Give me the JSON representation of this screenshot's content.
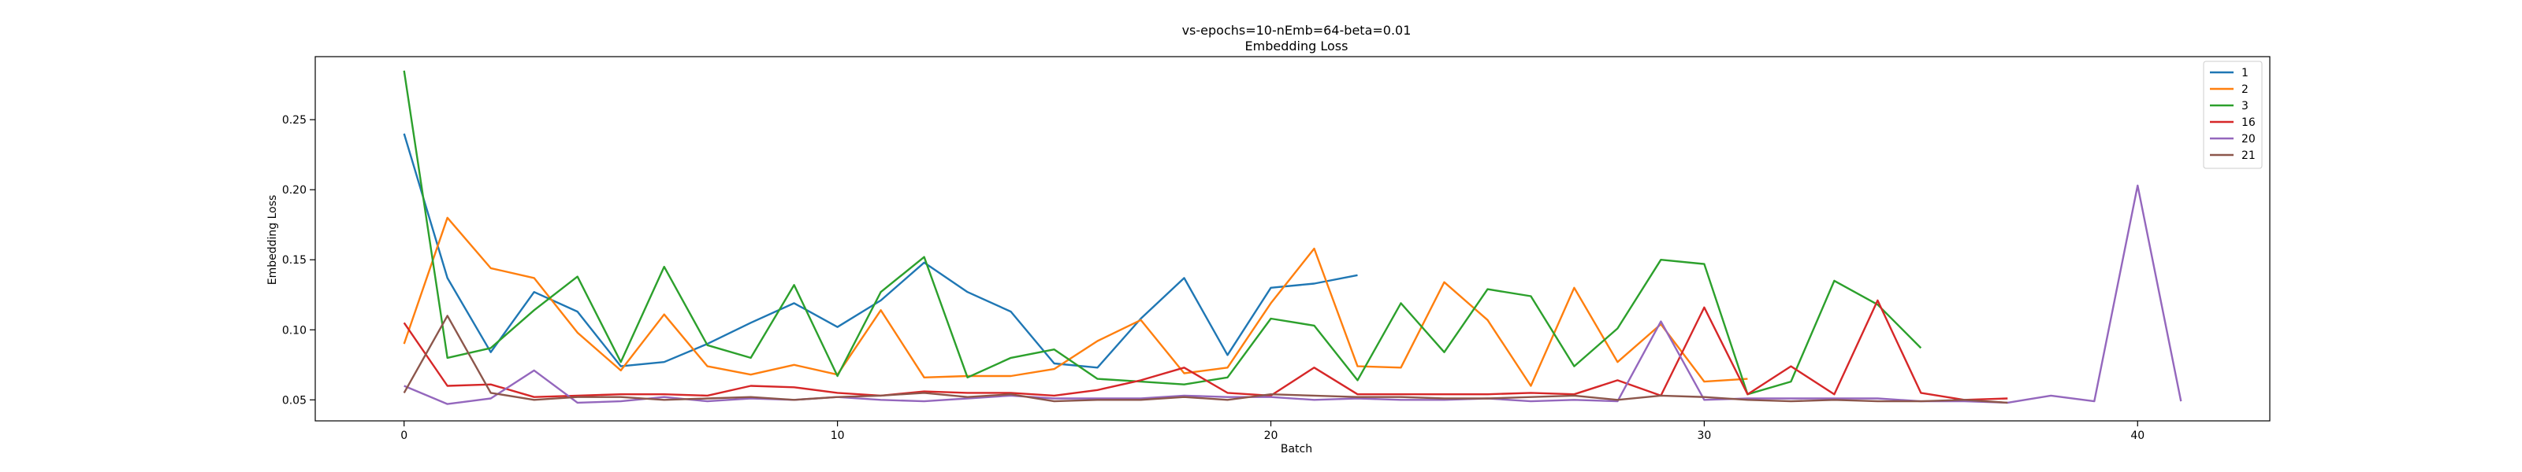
{
  "chart_data": {
    "type": "line",
    "title": "vs-epochs=10-nEmb=64-beta=0.01",
    "subtitle": "Embedding Loss",
    "xlabel": "Batch",
    "ylabel": "Embedding Loss",
    "xlim": [
      -2.05,
      43.05
    ],
    "ylim": [
      0.035,
      0.295
    ],
    "xticks": [
      0,
      10,
      20,
      30,
      40
    ],
    "yticks": [
      0.05,
      0.1,
      0.15,
      0.2,
      0.25
    ],
    "ytick_labels": [
      "0.05",
      "0.10",
      "0.15",
      "0.20",
      "0.25"
    ],
    "grid": false,
    "legend_position": "top-right",
    "series": [
      {
        "name": "1",
        "color": "#1f77b4",
        "y": [
          0.24,
          0.137,
          0.084,
          0.127,
          0.113,
          0.074,
          0.077,
          0.09,
          0.105,
          0.119,
          0.102,
          0.121,
          0.148,
          0.127,
          0.113,
          0.076,
          0.073,
          0.108,
          0.137,
          0.082,
          0.13,
          0.133,
          0.139
        ]
      },
      {
        "name": "2",
        "color": "#ff7f0e",
        "y": [
          0.09,
          0.18,
          0.144,
          0.137,
          0.098,
          0.071,
          0.111,
          0.074,
          0.068,
          0.075,
          0.068,
          0.114,
          0.066,
          0.067,
          0.067,
          0.072,
          0.092,
          0.107,
          0.069,
          0.073,
          0.119,
          0.158,
          0.074,
          0.073,
          0.134,
          0.107,
          0.06,
          0.13,
          0.077,
          0.104,
          0.063,
          0.065
        ]
      },
      {
        "name": "3",
        "color": "#2ca02c",
        "y": [
          0.285,
          0.08,
          0.087,
          0.114,
          0.138,
          0.077,
          0.145,
          0.089,
          0.08,
          0.132,
          0.067,
          0.127,
          0.152,
          0.066,
          0.08,
          0.086,
          0.065,
          0.063,
          0.061,
          0.066,
          0.108,
          0.103,
          0.064,
          0.119,
          0.084,
          0.129,
          0.124,
          0.074,
          0.101,
          0.15,
          0.147,
          0.054,
          0.063,
          0.135,
          0.118,
          0.087
        ]
      },
      {
        "name": "16",
        "color": "#d62728",
        "y": [
          0.105,
          0.06,
          0.061,
          0.052,
          0.053,
          0.054,
          0.054,
          0.053,
          0.06,
          0.059,
          0.055,
          0.053,
          0.056,
          0.055,
          0.055,
          0.053,
          0.057,
          0.064,
          0.073,
          0.055,
          0.053,
          0.073,
          0.054,
          0.054,
          0.054,
          0.054,
          0.055,
          0.054,
          0.064,
          0.053,
          0.116,
          0.054,
          0.074,
          0.054,
          0.121,
          0.055,
          0.05,
          0.051
        ]
      },
      {
        "name": "20",
        "color": "#9467bd",
        "y": [
          0.06,
          0.047,
          0.051,
          0.071,
          0.048,
          0.049,
          0.052,
          0.049,
          0.051,
          0.05,
          0.052,
          0.05,
          0.049,
          0.051,
          0.053,
          0.051,
          0.051,
          0.051,
          0.053,
          0.052,
          0.052,
          0.05,
          0.051,
          0.05,
          0.05,
          0.051,
          0.049,
          0.05,
          0.049,
          0.106,
          0.05,
          0.051,
          0.051,
          0.051,
          0.051,
          0.049,
          0.049,
          0.048,
          0.053,
          0.049,
          0.203,
          0.049
        ]
      },
      {
        "name": "21",
        "color": "#8c564b",
        "y": [
          0.055,
          0.11,
          0.055,
          0.05,
          0.052,
          0.052,
          0.05,
          0.051,
          0.052,
          0.05,
          0.052,
          0.053,
          0.055,
          0.052,
          0.054,
          0.049,
          0.05,
          0.05,
          0.052,
          0.05,
          0.054,
          0.053,
          0.052,
          0.052,
          0.051,
          0.051,
          0.052,
          0.053,
          0.05,
          0.053,
          0.052,
          0.05,
          0.049,
          0.05,
          0.049,
          0.049,
          0.05,
          0.048
        ]
      }
    ]
  }
}
